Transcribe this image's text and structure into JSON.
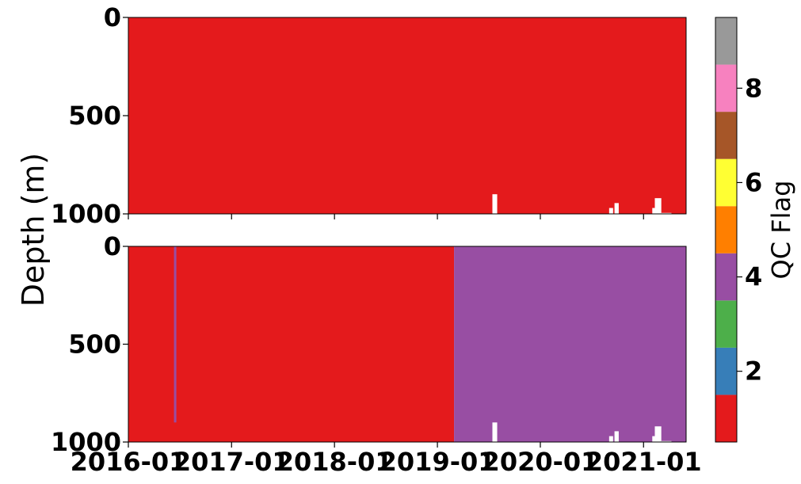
{
  "chart_data": {
    "type": "heatmap",
    "ylabel": "Depth (m)",
    "y_range": [
      0,
      1000
    ],
    "y_inverted": true,
    "y_ticks": [
      "0",
      "500",
      "1000"
    ],
    "x_range": [
      "2016-01",
      "2021-06"
    ],
    "x_ticks": [
      "2016-01",
      "2017-01",
      "2018-01",
      "2019-01",
      "2020-01",
      "2021-01"
    ],
    "shared_x": true,
    "colorbar": {
      "label": "QC Flag",
      "range": [
        0.5,
        9.5
      ],
      "ticks": [
        "2",
        "4",
        "6",
        "8"
      ],
      "levels": [
        {
          "flag": 1,
          "color": "#e41a1c"
        },
        {
          "flag": 2,
          "color": "#377eb8"
        },
        {
          "flag": 3,
          "color": "#4daf4a"
        },
        {
          "flag": 4,
          "color": "#984ea3"
        },
        {
          "flag": 5,
          "color": "#ff7f00"
        },
        {
          "flag": 6,
          "color": "#ffff33"
        },
        {
          "flag": 7,
          "color": "#a65628"
        },
        {
          "flag": 8,
          "color": "#f781bf"
        },
        {
          "flag": 9,
          "color": "#999999"
        }
      ]
    },
    "gaps": [
      {
        "x_from": "2019-07-15",
        "x_to": "2019-08-01",
        "depth_from": 900,
        "depth_to": 1000
      },
      {
        "x_from": "2020-09-01",
        "x_to": "2020-09-15",
        "depth_from": 970,
        "depth_to": 1000
      },
      {
        "x_from": "2020-09-20",
        "x_to": "2020-10-05",
        "depth_from": 945,
        "depth_to": 1000
      },
      {
        "x_from": "2021-02-01",
        "x_to": "2021-02-10",
        "depth_from": 970,
        "depth_to": 1000
      },
      {
        "x_from": "2021-02-10",
        "x_to": "2021-03-05",
        "depth_from": 920,
        "depth_to": 1000
      },
      {
        "x_from": "2021-03-05",
        "x_to": "2021-04-10",
        "depth_from": 995,
        "depth_to": 1000
      }
    ],
    "panels": [
      {
        "name": "top",
        "segments": [
          {
            "x_from": "2016-01",
            "x_to": "2021-06",
            "flag": 1
          }
        ],
        "lines": []
      },
      {
        "name": "bottom",
        "segments": [
          {
            "x_from": "2016-01",
            "x_to": "2019-03-01",
            "flag": 1
          },
          {
            "x_from": "2019-03-01",
            "x_to": "2021-06",
            "flag": 4
          }
        ],
        "lines": [
          {
            "x": "2016-06-15",
            "depth_from": 0,
            "depth_to": 900,
            "flag": 4
          }
        ]
      }
    ]
  }
}
